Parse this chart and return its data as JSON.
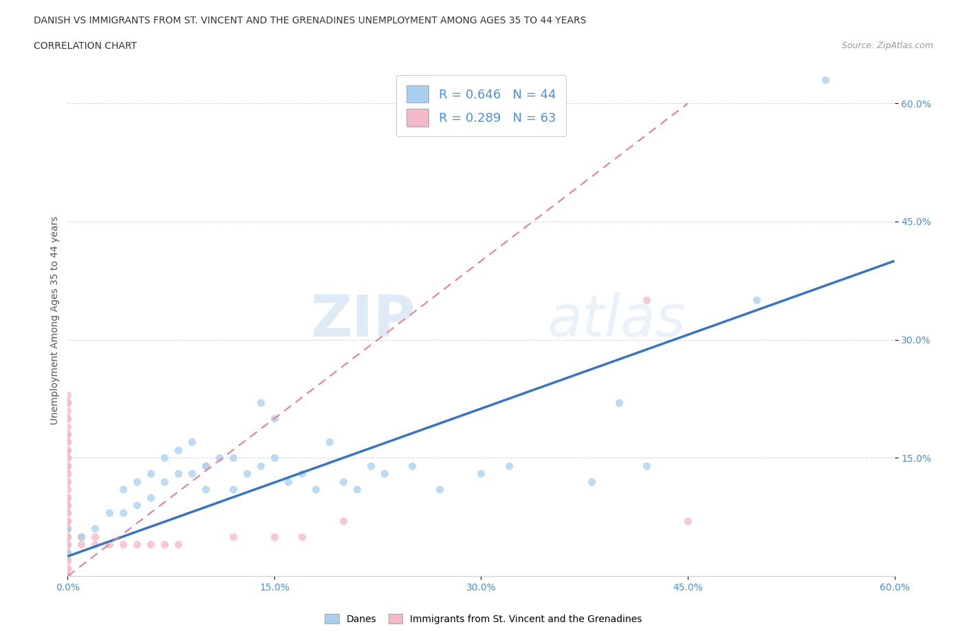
{
  "title_line1": "DANISH VS IMMIGRANTS FROM ST. VINCENT AND THE GRENADINES UNEMPLOYMENT AMONG AGES 35 TO 44 YEARS",
  "title_line2": "CORRELATION CHART",
  "source_text": "Source: ZipAtlas.com",
  "ylabel": "Unemployment Among Ages 35 to 44 years",
  "xlim": [
    0.0,
    0.6
  ],
  "ylim": [
    0.0,
    0.65
  ],
  "xtick_labels": [
    "0.0%",
    "15.0%",
    "30.0%",
    "45.0%",
    "60.0%"
  ],
  "xtick_vals": [
    0.0,
    0.15,
    0.3,
    0.45,
    0.6
  ],
  "ytick_labels": [
    "15.0%",
    "30.0%",
    "45.0%",
    "60.0%"
  ],
  "ytick_vals": [
    0.15,
    0.3,
    0.45,
    0.6
  ],
  "danes_color": "#a8cff0",
  "immigrants_color": "#f5b8c8",
  "danes_line_color": "#3575c3",
  "immigrants_line_color": "#e08090",
  "danes_R": 0.646,
  "danes_N": 44,
  "immigrants_R": 0.289,
  "immigrants_N": 63,
  "legend_label_danes": "Danes",
  "legend_label_immigrants": "Immigrants from St. Vincent and the Grenadines",
  "watermark_zip": "ZIP",
  "watermark_atlas": "atlas",
  "danes_scatter_x": [
    0.0,
    0.0,
    0.01,
    0.02,
    0.03,
    0.04,
    0.04,
    0.05,
    0.05,
    0.06,
    0.06,
    0.07,
    0.07,
    0.08,
    0.08,
    0.09,
    0.09,
    0.1,
    0.1,
    0.11,
    0.12,
    0.12,
    0.13,
    0.14,
    0.14,
    0.15,
    0.15,
    0.16,
    0.17,
    0.18,
    0.19,
    0.2,
    0.21,
    0.22,
    0.23,
    0.25,
    0.27,
    0.3,
    0.32,
    0.38,
    0.4,
    0.42,
    0.5,
    0.55
  ],
  "danes_scatter_y": [
    0.03,
    0.06,
    0.05,
    0.06,
    0.08,
    0.08,
    0.11,
    0.09,
    0.12,
    0.1,
    0.13,
    0.12,
    0.15,
    0.13,
    0.16,
    0.13,
    0.17,
    0.11,
    0.14,
    0.15,
    0.11,
    0.15,
    0.13,
    0.14,
    0.22,
    0.15,
    0.2,
    0.12,
    0.13,
    0.11,
    0.17,
    0.12,
    0.11,
    0.14,
    0.13,
    0.14,
    0.11,
    0.13,
    0.14,
    0.12,
    0.22,
    0.14,
    0.35,
    0.63
  ],
  "immigrants_scatter_x": [
    0.0,
    0.0,
    0.0,
    0.0,
    0.0,
    0.0,
    0.0,
    0.0,
    0.0,
    0.0,
    0.0,
    0.0,
    0.0,
    0.0,
    0.0,
    0.0,
    0.0,
    0.0,
    0.0,
    0.0,
    0.0,
    0.0,
    0.0,
    0.0,
    0.0,
    0.0,
    0.0,
    0.0,
    0.0,
    0.0,
    0.0,
    0.0,
    0.0,
    0.0,
    0.0,
    0.0,
    0.0,
    0.0,
    0.0,
    0.0,
    0.0,
    0.0,
    0.0,
    0.0,
    0.0,
    0.0,
    0.01,
    0.01,
    0.02,
    0.02,
    0.03,
    0.04,
    0.05,
    0.06,
    0.07,
    0.08,
    0.1,
    0.12,
    0.15,
    0.17,
    0.2,
    0.42,
    0.45
  ],
  "immigrants_scatter_y": [
    0.0,
    0.0,
    0.0,
    0.01,
    0.01,
    0.02,
    0.02,
    0.03,
    0.03,
    0.04,
    0.04,
    0.05,
    0.05,
    0.06,
    0.06,
    0.07,
    0.07,
    0.08,
    0.08,
    0.09,
    0.09,
    0.1,
    0.1,
    0.11,
    0.12,
    0.13,
    0.14,
    0.15,
    0.16,
    0.17,
    0.18,
    0.19,
    0.2,
    0.21,
    0.22,
    0.23,
    0.22,
    0.2,
    0.18,
    0.17,
    0.16,
    0.15,
    0.14,
    0.13,
    0.12,
    0.22,
    0.04,
    0.05,
    0.05,
    0.04,
    0.04,
    0.04,
    0.04,
    0.04,
    0.04,
    0.04,
    0.14,
    0.05,
    0.05,
    0.05,
    0.07,
    0.35,
    0.07
  ],
  "danes_trendline_x": [
    0.0,
    0.6
  ],
  "danes_trendline_y": [
    0.025,
    0.4
  ],
  "immigrants_trendline_x": [
    0.0,
    0.45
  ],
  "immigrants_trendline_y": [
    0.0,
    0.6
  ],
  "background_color": "#ffffff",
  "grid_color": "#d0d0d0"
}
